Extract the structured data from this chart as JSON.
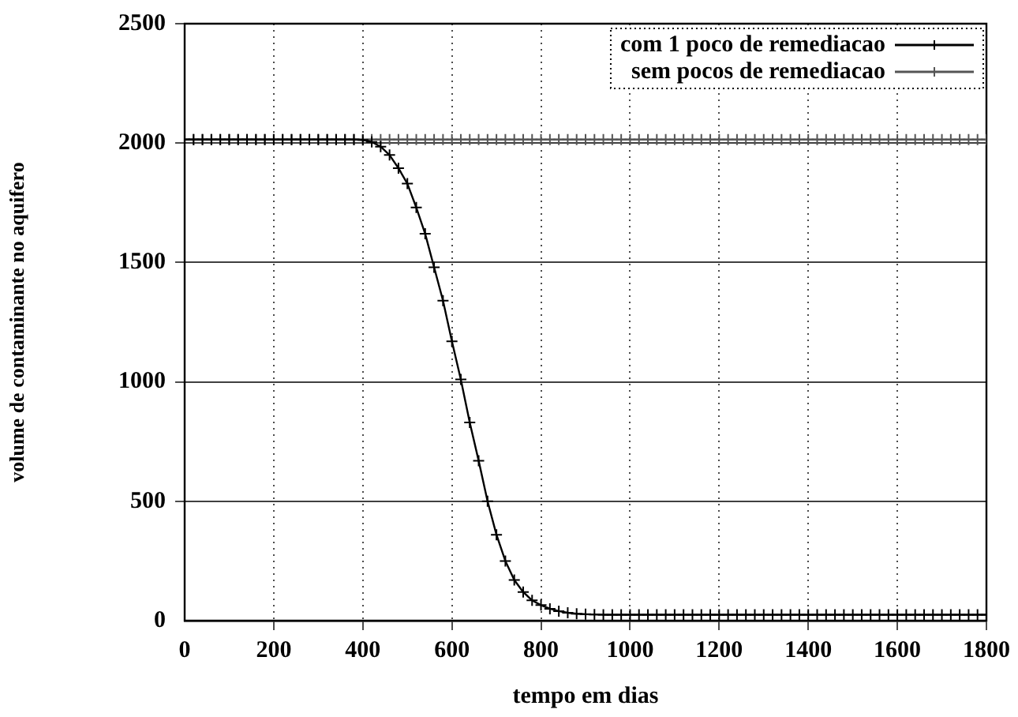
{
  "chart_data": {
    "type": "line",
    "xlabel": "tempo em dias",
    "ylabel": "volume de contaminante no aquifero",
    "x": [
      0,
      20,
      40,
      60,
      80,
      100,
      120,
      140,
      160,
      180,
      200,
      220,
      240,
      260,
      280,
      300,
      320,
      340,
      360,
      380,
      400,
      420,
      440,
      460,
      480,
      500,
      520,
      540,
      560,
      580,
      600,
      620,
      640,
      660,
      680,
      700,
      720,
      740,
      760,
      780,
      800,
      820,
      840,
      860,
      880,
      900,
      920,
      940,
      960,
      980,
      1000,
      1020,
      1040,
      1060,
      1080,
      1100,
      1120,
      1140,
      1160,
      1180,
      1200,
      1220,
      1240,
      1260,
      1280,
      1300,
      1320,
      1340,
      1360,
      1380,
      1400,
      1420,
      1440,
      1460,
      1480,
      1500,
      1520,
      1540,
      1560,
      1580,
      1600,
      1620,
      1640,
      1660,
      1680,
      1700,
      1720,
      1740,
      1760,
      1780,
      1800
    ],
    "series": [
      {
        "name": "com 1 poco de remediacao",
        "color": "#000000",
        "marker": "cross",
        "values": [
          2015,
          2015,
          2015,
          2015,
          2015,
          2015,
          2015,
          2015,
          2015,
          2015,
          2015,
          2015,
          2015,
          2015,
          2015,
          2015,
          2015,
          2015,
          2015,
          2015,
          2013,
          2005,
          1985,
          1950,
          1895,
          1830,
          1730,
          1620,
          1480,
          1340,
          1170,
          1010,
          830,
          670,
          500,
          360,
          250,
          170,
          120,
          85,
          65,
          50,
          40,
          33,
          29,
          27,
          26,
          25,
          25,
          25,
          25,
          25,
          25,
          25,
          25,
          25,
          25,
          25,
          25,
          25,
          25,
          25,
          25,
          25,
          25,
          25,
          25,
          25,
          25,
          25,
          25,
          25,
          25,
          25,
          25,
          25,
          25,
          25,
          25,
          25,
          25,
          25,
          25,
          25,
          25,
          25,
          25,
          25,
          25,
          25,
          25
        ]
      },
      {
        "name": "sem pocos de remediacao",
        "color": "#555555",
        "marker": "cross",
        "values": [
          2015,
          2015,
          2015,
          2015,
          2015,
          2015,
          2015,
          2015,
          2015,
          2015,
          2015,
          2015,
          2015,
          2015,
          2015,
          2015,
          2015,
          2015,
          2015,
          2015,
          2015,
          2015,
          2015,
          2015,
          2015,
          2015,
          2015,
          2015,
          2015,
          2015,
          2015,
          2015,
          2015,
          2015,
          2015,
          2015,
          2015,
          2015,
          2015,
          2015,
          2015,
          2015,
          2015,
          2015,
          2015,
          2015,
          2015,
          2015,
          2015,
          2015,
          2015,
          2015,
          2015,
          2015,
          2015,
          2015,
          2015,
          2015,
          2015,
          2015,
          2015,
          2015,
          2015,
          2015,
          2015,
          2015,
          2015,
          2015,
          2015,
          2015,
          2015,
          2015,
          2015,
          2015,
          2015,
          2015,
          2015,
          2015,
          2015,
          2015,
          2015,
          2015,
          2015,
          2015,
          2015,
          2015,
          2015,
          2015,
          2015,
          2015,
          2015
        ]
      }
    ],
    "xlim": [
      0,
      1800
    ],
    "xticks": [
      0,
      200,
      400,
      600,
      800,
      1000,
      1200,
      1400,
      1600,
      1800
    ],
    "ylim": [
      0,
      2500
    ],
    "yticks": [
      0,
      500,
      1000,
      1500,
      2000,
      2500
    ],
    "grid": true,
    "legend": "top right",
    "line_style": "solid"
  }
}
